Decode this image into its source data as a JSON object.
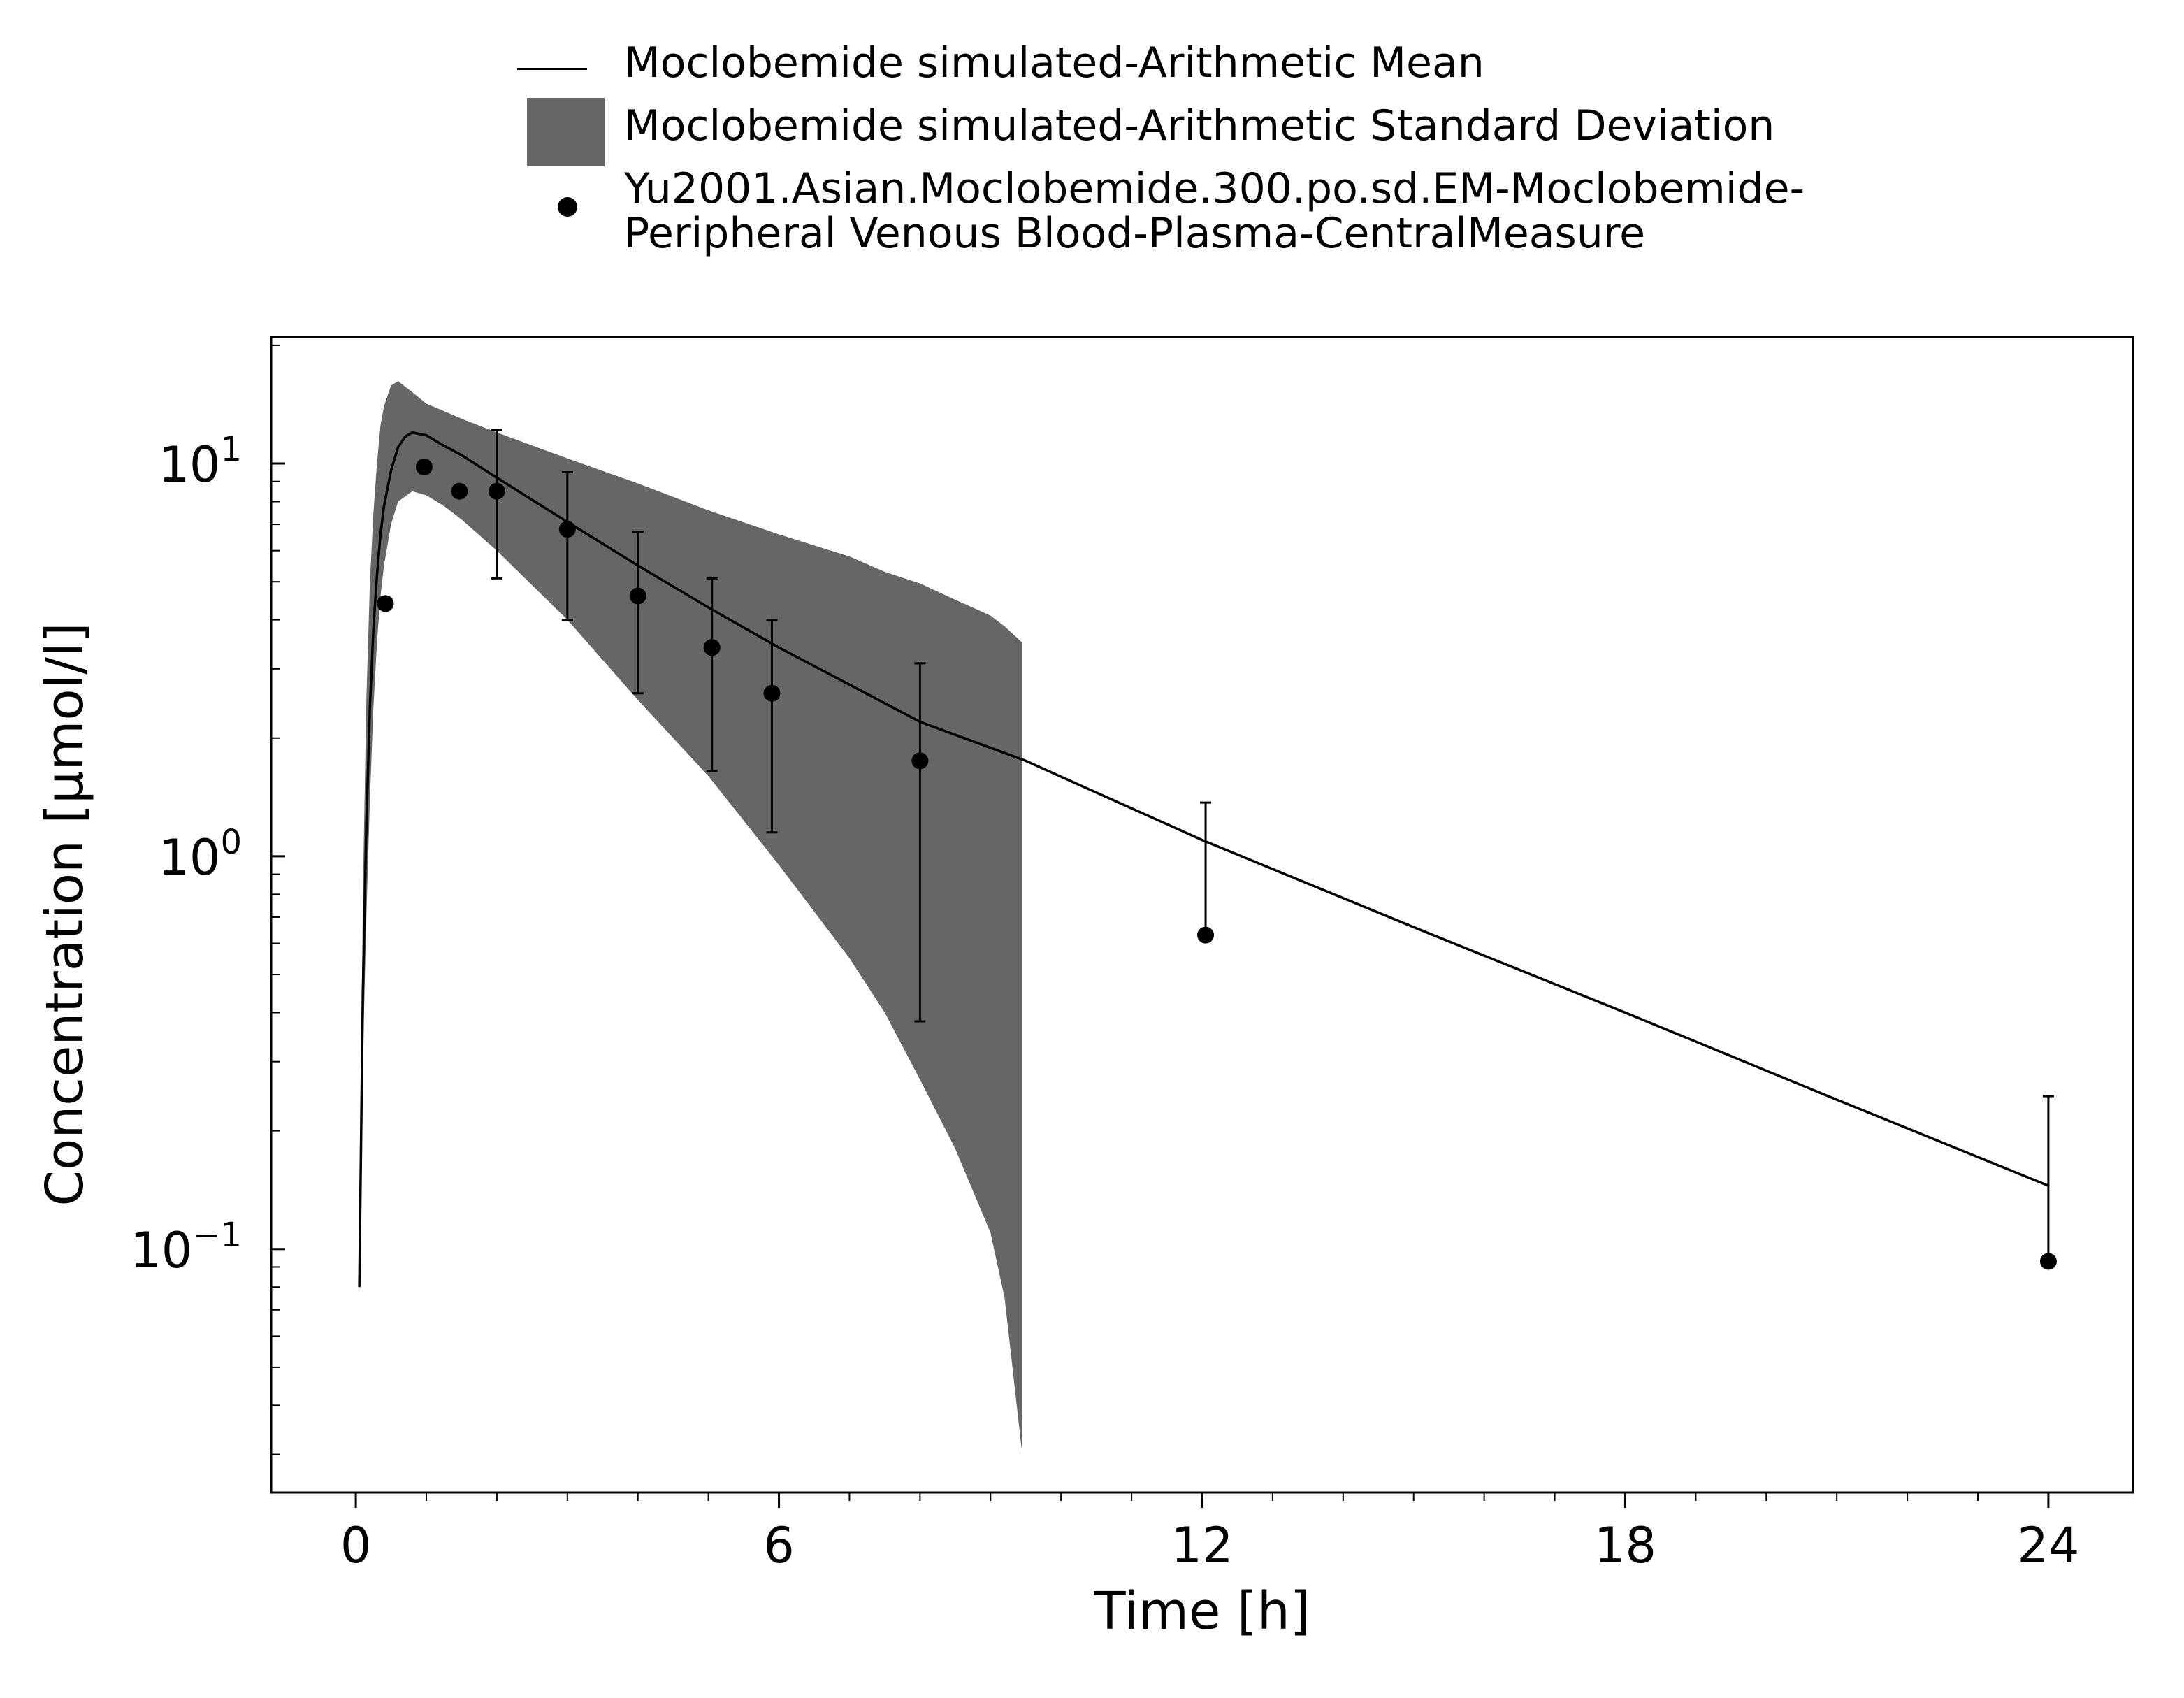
{
  "chart_data": {
    "type": "line",
    "xlabel": "Time [h]",
    "ylabel": "Concentration [µmol/l]",
    "y_scale": "log",
    "xlim": [
      -1.2,
      25.2
    ],
    "ylim": [
      0.024,
      21
    ],
    "x_ticks": [
      {
        "value": 0,
        "label": "0"
      },
      {
        "value": 6,
        "label": "6"
      },
      {
        "value": 12,
        "label": "12"
      },
      {
        "value": 18,
        "label": "18"
      },
      {
        "value": 24,
        "label": "24"
      }
    ],
    "y_ticks": [
      {
        "value": 0.1,
        "base": "10",
        "exp": "−1"
      },
      {
        "value": 1,
        "base": "10",
        "exp": "0"
      },
      {
        "value": 10,
        "base": "10",
        "exp": "1"
      }
    ],
    "grid": false,
    "legend_position": "top",
    "colors": {
      "mean_line": "#000000",
      "sd_band": "#666666",
      "observed": "#000000"
    },
    "series": [
      {
        "name": "Moclobemide simulated-Arithmetic Mean",
        "kind": "line",
        "x": [
          0.05,
          0.1,
          0.15,
          0.2,
          0.25,
          0.3,
          0.35,
          0.4,
          0.5,
          0.6,
          0.7,
          0.8,
          1.0,
          1.25,
          1.5,
          2,
          3,
          4,
          5,
          6,
          8,
          9.5,
          12,
          15,
          18,
          21,
          24
        ],
        "y": [
          0.08,
          0.45,
          1.2,
          2.4,
          3.8,
          5.2,
          6.6,
          7.8,
          9.6,
          11.0,
          11.7,
          12.0,
          11.8,
          11.1,
          10.5,
          9.2,
          7.1,
          5.5,
          4.3,
          3.4,
          2.2,
          1.75,
          1.1,
          0.66,
          0.4,
          0.24,
          0.145
        ]
      },
      {
        "name": "Moclobemide simulated-Arithmetic Standard Deviation",
        "kind": "band",
        "x": [
          0.05,
          0.1,
          0.15,
          0.2,
          0.25,
          0.3,
          0.35,
          0.4,
          0.5,
          0.6,
          0.8,
          1.0,
          1.25,
          1.5,
          2,
          3,
          4,
          5,
          6,
          7,
          7.5,
          8,
          8.5,
          9.0,
          9.2,
          9.45
        ],
        "upper": [
          0.08,
          0.8,
          2.5,
          5.0,
          7.5,
          10.0,
          12.5,
          14.0,
          15.8,
          16.2,
          15.2,
          14.2,
          13.6,
          13.0,
          12.0,
          10.3,
          8.9,
          7.6,
          6.6,
          5.8,
          5.3,
          4.95,
          4.5,
          4.1,
          3.85,
          3.5
        ],
        "lower": [
          0.08,
          0.3,
          0.7,
          1.4,
          2.4,
          3.5,
          4.6,
          5.5,
          7.0,
          8.0,
          8.5,
          8.3,
          7.8,
          7.2,
          6.0,
          4.0,
          2.5,
          1.6,
          0.95,
          0.55,
          0.4,
          0.27,
          0.18,
          0.11,
          0.075,
          0.03
        ]
      },
      {
        "name": "Yu2001.Asian.Moclobemide.300.po.sd.EM-Moclobemide-Peripheral Venous Blood-Plasma-CentralMeasure",
        "legend_lines": [
          "Yu2001.Asian.Moclobemide.300.po.sd.EM-Moclobemide-",
          "Peripheral Venous Blood-Plasma-CentralMeasure"
        ],
        "kind": "scatter",
        "points": [
          {
            "x": 0.42,
            "y": 4.4
          },
          {
            "x": 0.97,
            "y": 9.8
          },
          {
            "x": 1.47,
            "y": 8.5
          },
          {
            "x": 2.0,
            "y": 8.5,
            "err_lo": 5.1,
            "err_hi": 12.2
          },
          {
            "x": 3.0,
            "y": 6.8,
            "err_lo": 4.0,
            "err_hi": 9.5
          },
          {
            "x": 4.0,
            "y": 4.6,
            "err_lo": 2.6,
            "err_hi": 6.7
          },
          {
            "x": 5.05,
            "y": 3.4,
            "err_lo": 1.65,
            "err_hi": 5.1
          },
          {
            "x": 5.9,
            "y": 2.6,
            "err_lo": 1.15,
            "err_hi": 4.0
          },
          {
            "x": 8.0,
            "y": 1.75,
            "err_lo": 0.38,
            "err_hi": 3.1
          },
          {
            "x": 12.05,
            "y": 0.63,
            "err_hi": 1.37
          },
          {
            "x": 24.0,
            "y": 0.093,
            "err_hi": 0.245
          }
        ]
      }
    ]
  }
}
